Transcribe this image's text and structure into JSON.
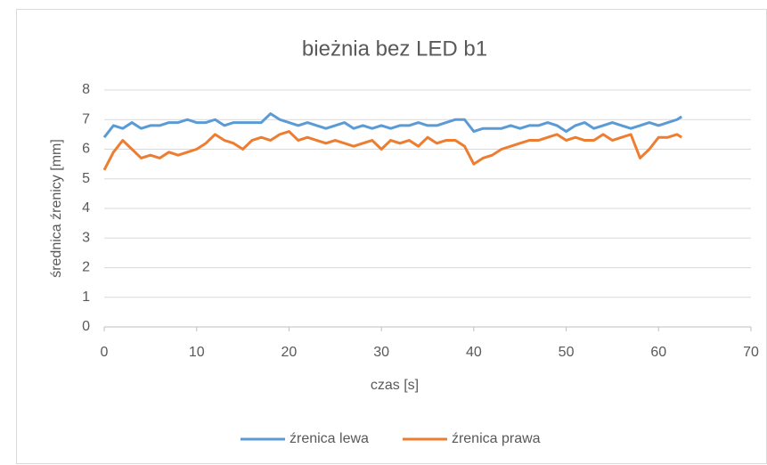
{
  "chart_data": {
    "type": "line",
    "title": "bieżnia bez LED b1",
    "x_label": "czas [s]",
    "y_label": "średnica źrenicy [mm]",
    "x": [
      0,
      1,
      2,
      3,
      4,
      5,
      6,
      7,
      8,
      9,
      10,
      11,
      12,
      13,
      14,
      15,
      16,
      17,
      18,
      19,
      20,
      21,
      22,
      23,
      24,
      25,
      26,
      27,
      28,
      29,
      30,
      31,
      32,
      33,
      34,
      35,
      36,
      37,
      38,
      39,
      40,
      41,
      42,
      43,
      44,
      45,
      46,
      47,
      48,
      49,
      50,
      51,
      52,
      53,
      54,
      55,
      56,
      57,
      58,
      59,
      60,
      61,
      62,
      62.5
    ],
    "series": [
      {
        "name": "źrenica lewa",
        "color": "#5b9bd5",
        "values": [
          6.4,
          6.8,
          6.7,
          6.9,
          6.7,
          6.8,
          6.8,
          6.9,
          6.9,
          7.0,
          6.9,
          6.9,
          7.0,
          6.8,
          6.9,
          6.9,
          6.9,
          6.9,
          7.2,
          7.0,
          6.9,
          6.8,
          6.9,
          6.8,
          6.7,
          6.8,
          6.9,
          6.7,
          6.8,
          6.7,
          6.8,
          6.7,
          6.8,
          6.8,
          6.9,
          6.8,
          6.8,
          6.9,
          7.0,
          7.0,
          6.6,
          6.7,
          6.7,
          6.7,
          6.8,
          6.7,
          6.8,
          6.8,
          6.9,
          6.8,
          6.6,
          6.8,
          6.9,
          6.7,
          6.8,
          6.9,
          6.8,
          6.7,
          6.8,
          6.9,
          6.8,
          6.9,
          7.0,
          7.1
        ]
      },
      {
        "name": "źrenica prawa",
        "color": "#ed7d31",
        "values": [
          5.3,
          5.9,
          6.3,
          6.0,
          5.7,
          5.8,
          5.7,
          5.9,
          5.8,
          5.9,
          6.0,
          6.2,
          6.5,
          6.3,
          6.2,
          6.0,
          6.3,
          6.4,
          6.3,
          6.5,
          6.6,
          6.3,
          6.4,
          6.3,
          6.2,
          6.3,
          6.2,
          6.1,
          6.2,
          6.3,
          6.0,
          6.3,
          6.2,
          6.3,
          6.1,
          6.4,
          6.2,
          6.3,
          6.3,
          6.1,
          5.5,
          5.7,
          5.8,
          6.0,
          6.1,
          6.2,
          6.3,
          6.3,
          6.4,
          6.5,
          6.3,
          6.4,
          6.3,
          6.3,
          6.5,
          6.3,
          6.4,
          6.5,
          5.7,
          6.0,
          6.4,
          6.4,
          6.5,
          6.4
        ]
      }
    ],
    "xlim": [
      0,
      70
    ],
    "xticks": [
      0,
      10,
      20,
      30,
      40,
      50,
      60,
      70
    ],
    "ylim": [
      0,
      8
    ],
    "yticks": [
      0,
      1,
      2,
      3,
      4,
      5,
      6,
      7,
      8
    ],
    "grid": true,
    "legend": "bottom"
  }
}
